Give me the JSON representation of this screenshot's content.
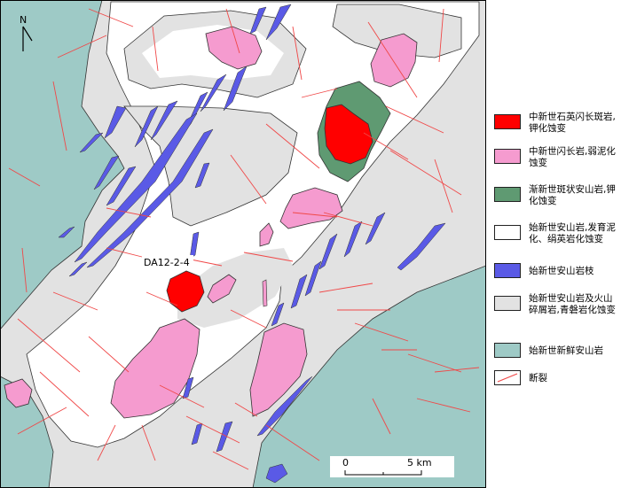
{
  "map": {
    "north_label": "N",
    "sample_label": "DA12-2-4",
    "scale": {
      "zero": "0",
      "end": "5 km"
    }
  },
  "colors": {
    "porphyry_red": "#ff0000",
    "diorite_pink": "#f59bcf",
    "andesite_green": "#5f9a72",
    "eocene_white": "#ffffff",
    "dike_blue": "#5a5ae6",
    "breccia_gray": "#e2e2e2",
    "fresh_teal": "#9ecac6",
    "fault_line": "#f04848"
  },
  "legend": [
    {
      "label": "中新世石英闪长斑岩,钾化蚀变",
      "color": "#ff0000",
      "icon": "red-fill-swatch"
    },
    {
      "label": "中新世闪长岩,弱泥化蚀变",
      "color": "#f59bcf",
      "icon": "pink-fill-swatch"
    },
    {
      "label": "渐新世斑状安山岩,钾化蚀变",
      "color": "#5f9a72",
      "icon": "green-fill-swatch"
    },
    {
      "label": "始新世安山岩,发育泥化、绢英岩化蚀变",
      "color": "#ffffff",
      "icon": "white-fill-swatch"
    },
    {
      "label": "始新世安山岩枝",
      "color": "#5a5ae6",
      "icon": "blue-fill-swatch"
    },
    {
      "label": "始新世安山岩及火山碎屑岩,青磐岩化蚀变",
      "color": "#e2e2e2",
      "icon": "gray-fill-swatch"
    },
    {
      "label": "始新世新鲜安山岩",
      "color": "#9ecac6",
      "icon": "teal-fill-swatch"
    },
    {
      "label": "断裂",
      "color": "#f04848",
      "icon": "fault-line-swatch"
    }
  ]
}
